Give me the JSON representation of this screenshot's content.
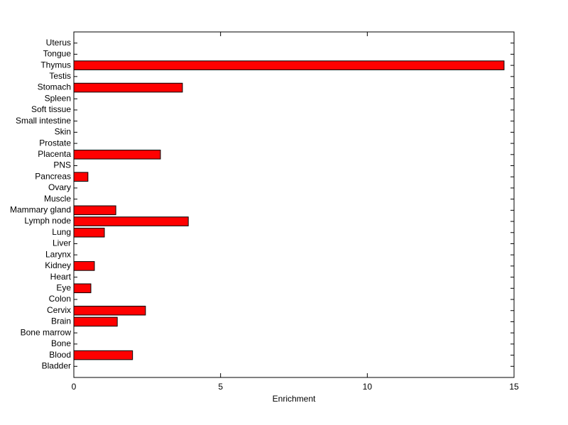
{
  "chart_data": {
    "type": "barh",
    "xlabel": "Enrichment",
    "categories": [
      "Bladder",
      "Blood",
      "Bone",
      "Bone marrow",
      "Brain",
      "Cervix",
      "Colon",
      "Eye",
      "Heart",
      "Kidney",
      "Larynx",
      "Liver",
      "Lung",
      "Lymph node",
      "Mammary gland",
      "Muscle",
      "Ovary",
      "Pancreas",
      "PNS",
      "Placenta",
      "Prostate",
      "Skin",
      "Small intestine",
      "Soft tissue",
      "Spleen",
      "Stomach",
      "Testis",
      "Thymus",
      "Tongue",
      "Uterus"
    ],
    "values": [
      0,
      2.0,
      0,
      0,
      1.48,
      2.44,
      0,
      0.58,
      0,
      0.7,
      0,
      0,
      1.04,
      3.9,
      1.43,
      0,
      0,
      0.48,
      0,
      2.95,
      0,
      0,
      0,
      0,
      0,
      3.7,
      0,
      14.66,
      0,
      0
    ],
    "color": "#ff0000",
    "xlim": [
      0,
      15
    ],
    "xticks": [
      0,
      5,
      10,
      15
    ]
  }
}
